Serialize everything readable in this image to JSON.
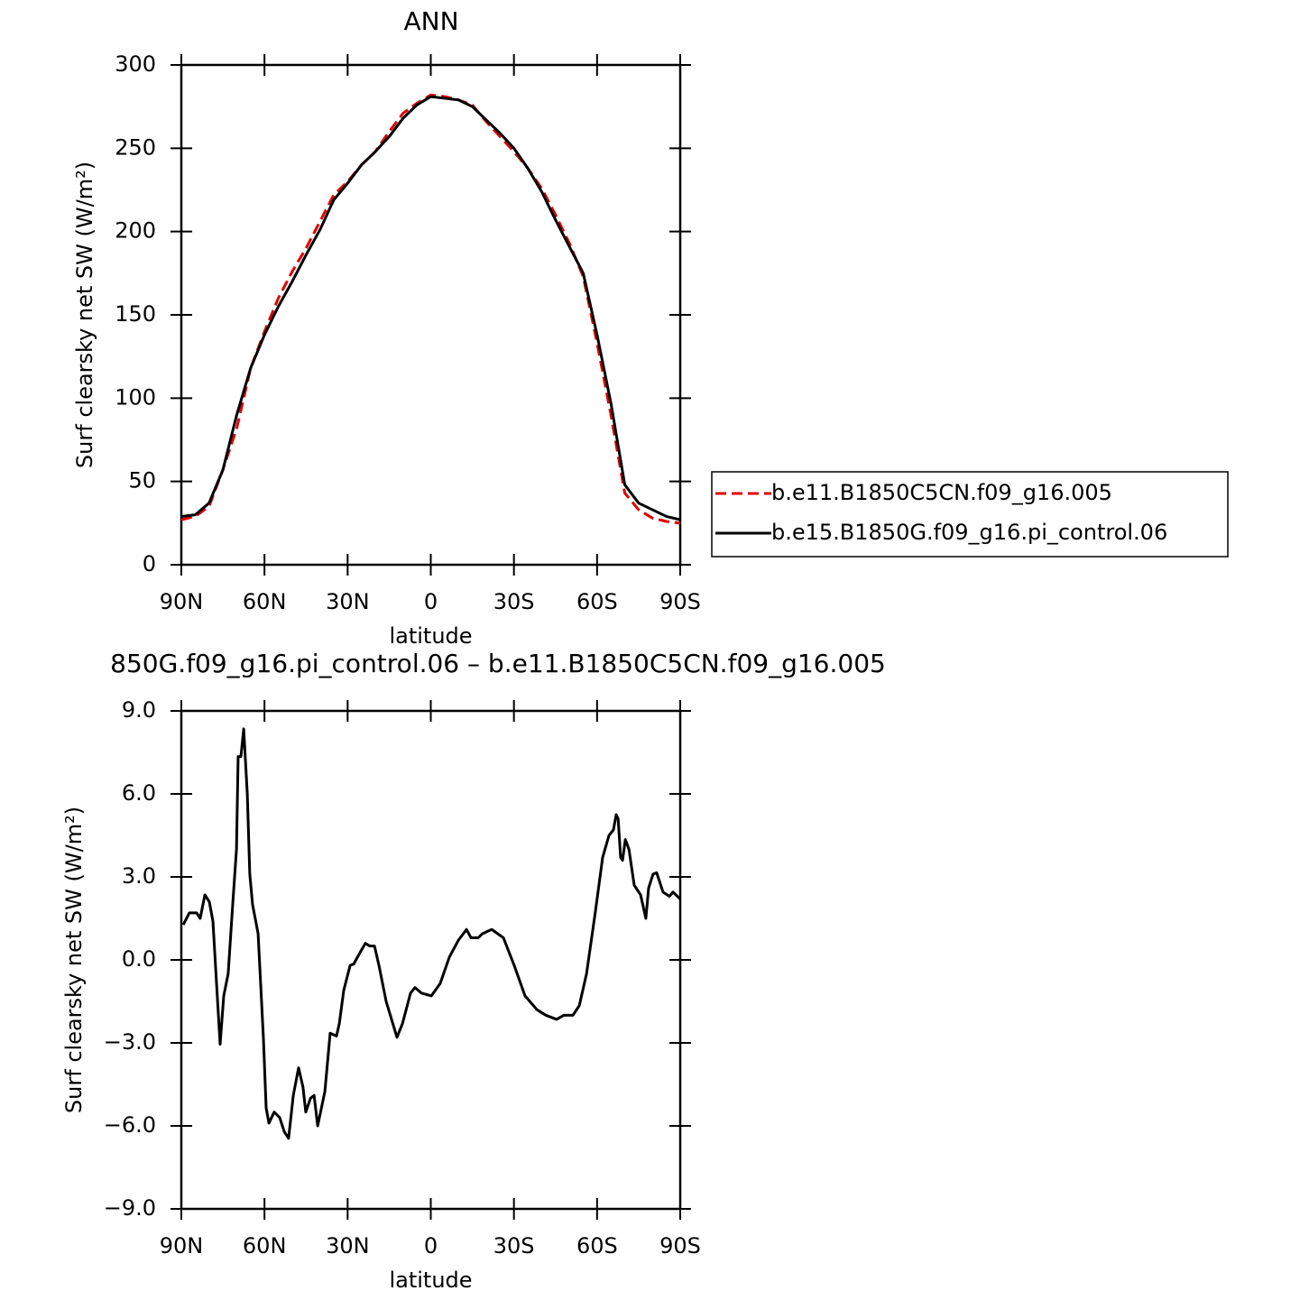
{
  "chart_data": [
    {
      "type": "line",
      "title": "ANN",
      "x_label": "latitude",
      "y_label": "Surf clearsky net SW (W/m²)",
      "x": [
        90,
        85,
        80,
        75,
        70,
        65,
        60,
        55,
        50,
        45,
        40,
        35,
        30,
        25,
        20,
        15,
        10,
        5,
        0,
        -5,
        -10,
        -15,
        -20,
        -25,
        -30,
        -35,
        -40,
        -45,
        -50,
        -55,
        -60,
        -65,
        -70,
        -75,
        -80,
        -85,
        -90
      ],
      "series": [
        {
          "name": "b.e11.B1850C5CN.f09_g16.005",
          "color": "#e00000",
          "style": "dashed",
          "values": [
            27,
            29,
            35,
            57,
            82,
            118,
            140,
            160,
            176,
            190,
            206,
            222,
            230,
            240,
            248,
            260,
            271,
            277,
            282,
            281,
            279,
            276,
            266,
            257,
            248,
            238,
            226,
            210,
            193,
            173,
            133,
            90,
            43,
            33,
            28,
            26,
            25
          ]
        },
        {
          "name": "b.e15.B1850G.f09_g16.pi_control.06",
          "color": "#000000",
          "style": "solid",
          "values": [
            29,
            30,
            37,
            57,
            90,
            118,
            138,
            155,
            170,
            186,
            201,
            219,
            229,
            240,
            248,
            257,
            268,
            276,
            281,
            280,
            279,
            275,
            267,
            259,
            250,
            238,
            224,
            207,
            191,
            175,
            138,
            97,
            48,
            37,
            33,
            29,
            27
          ]
        }
      ],
      "xlim": [
        90,
        -90
      ],
      "xticks": [
        {
          "value": 90,
          "label": "90N"
        },
        {
          "value": 60,
          "label": "60N"
        },
        {
          "value": 30,
          "label": "30N"
        },
        0,
        {
          "value": -30,
          "label": "30S"
        },
        {
          "value": -60,
          "label": "60S"
        },
        {
          "value": -90,
          "label": "90S"
        }
      ],
      "ylim": [
        0,
        300
      ],
      "yticks": [
        0,
        50,
        100,
        150,
        200,
        250,
        300
      ],
      "legend": "right"
    },
    {
      "type": "line",
      "title": "850G.f09_g16.pi_control.06 – b.e11.B1850C5CN.f09_g16.005",
      "x_label": "latitude",
      "y_label": "Surf clearsky net SW (W/m²)",
      "x": [
        89.3,
        87.1,
        84.5,
        83.2,
        81.5,
        79.9,
        78.6,
        77.3,
        76,
        74.7,
        73.1,
        71.4,
        70.1,
        69.5,
        68.5,
        67.5,
        66.2,
        65.3,
        64.3,
        62.3,
        60.4,
        59.4,
        58.4,
        56.5,
        54.5,
        52.9,
        51.3,
        49.6,
        47.7,
        46.1,
        45.1,
        43.4,
        42.1,
        40.8,
        38.2,
        36.3,
        34,
        33,
        31.4,
        29.1,
        27.8,
        25.9,
        23.6,
        22,
        20.3,
        18.7,
        16.1,
        12.2,
        10.2,
        7.3,
        5.7,
        3.4,
        -0.2,
        -3.4,
        -6.7,
        -9.9,
        -12.9,
        -14.5,
        -17.1,
        -18.7,
        -22,
        -26.2,
        -30.1,
        -34,
        -38.3,
        -41.5,
        -45.4,
        -48,
        -51.3,
        -53.6,
        -56.2,
        -59.4,
        -62,
        -64.3,
        -65.9,
        -66.9,
        -67.6,
        -68.5,
        -69.2,
        -70.2,
        -71.5,
        -73.4,
        -75.7,
        -77.6,
        -78.6,
        -80.2,
        -81.5,
        -83.8,
        -86.1,
        -87.4,
        -90
      ],
      "series": [
        {
          "color": "#000000",
          "style": "solid",
          "values": [
            1.27,
            1.7,
            1.7,
            1.5,
            2.35,
            2.1,
            1.4,
            -0.85,
            -3.05,
            -1.3,
            -0.5,
            2.1,
            4.0,
            7.35,
            7.35,
            8.35,
            6.0,
            3.1,
            2.0,
            0.95,
            -2.8,
            -5.35,
            -5.9,
            -5.5,
            -5.7,
            -6.2,
            -6.45,
            -4.9,
            -3.9,
            -4.6,
            -5.5,
            -5.0,
            -4.9,
            -6.0,
            -4.75,
            -2.65,
            -2.75,
            -2.3,
            -1.1,
            -0.2,
            -0.15,
            0.2,
            0.6,
            0.5,
            0.5,
            -0.2,
            -1.5,
            -2.8,
            -2.3,
            -1.2,
            -1.0,
            -1.2,
            -1.3,
            -0.85,
            0.1,
            0.7,
            1.1,
            0.8,
            0.8,
            0.95,
            1.1,
            0.8,
            -0.2,
            -1.3,
            -1.8,
            -2.0,
            -2.15,
            -2.0,
            -2.0,
            -1.65,
            -0.5,
            1.75,
            3.7,
            4.5,
            4.7,
            5.25,
            5.1,
            3.7,
            3.6,
            4.35,
            4.0,
            2.7,
            2.35,
            1.5,
            2.6,
            3.1,
            3.15,
            2.45,
            2.3,
            2.45,
            2.2
          ]
        }
      ],
      "xlim": [
        90,
        -90
      ],
      "xticks": [
        {
          "value": 90,
          "label": "90N"
        },
        {
          "value": 60,
          "label": "60N"
        },
        {
          "value": 30,
          "label": "30N"
        },
        0,
        {
          "value": -30,
          "label": "30S"
        },
        {
          "value": -60,
          "label": "60S"
        },
        {
          "value": -90,
          "label": "90S"
        }
      ],
      "ylim": [
        -9,
        9
      ],
      "yticks": [
        {
          "value": -9,
          "label": "−9.0"
        },
        {
          "value": -6,
          "label": "−6.0"
        },
        {
          "value": -3,
          "label": "−3.0"
        },
        {
          "value": 0,
          "label": "0.0"
        },
        {
          "value": 3,
          "label": "3.0"
        },
        {
          "value": 6,
          "label": "6.0"
        },
        {
          "value": 9,
          "label": "9.0"
        }
      ]
    }
  ]
}
